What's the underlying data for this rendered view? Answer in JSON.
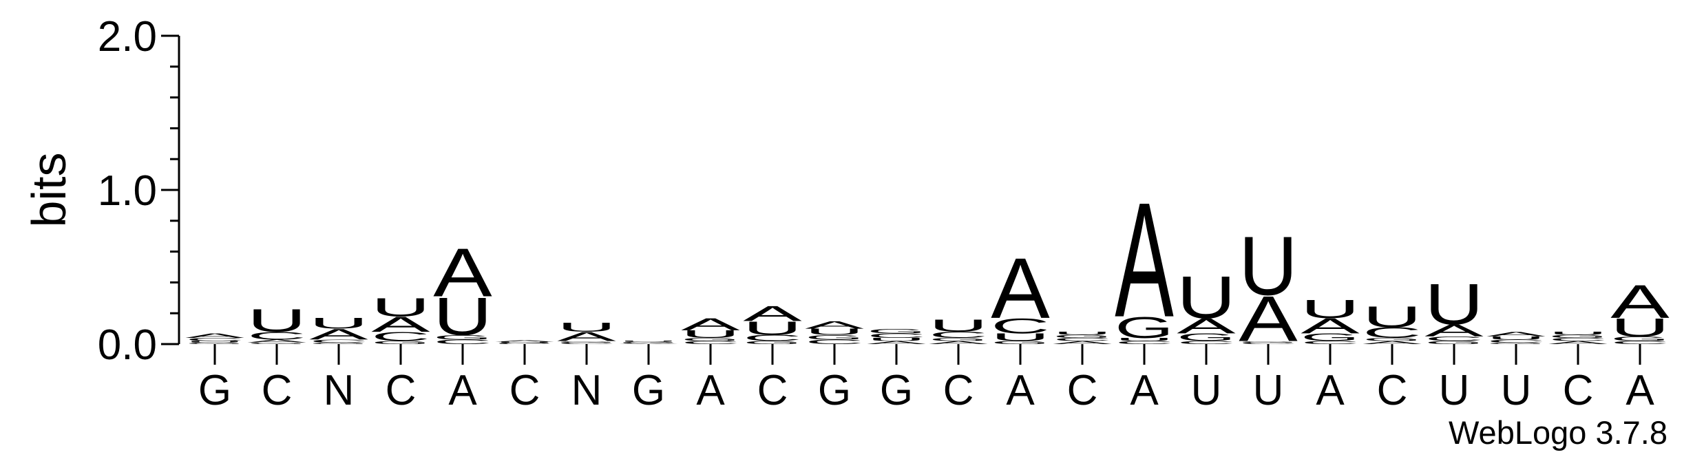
{
  "chart_data": {
    "type": "logo",
    "y_label": "bits",
    "footer": "WebLogo 3.7.8",
    "categories": [
      "G",
      "C",
      "N",
      "C",
      "A",
      "C",
      "N",
      "G",
      "A",
      "C",
      "G",
      "G",
      "C",
      "A",
      "C",
      "A",
      "U",
      "U",
      "A",
      "C",
      "U",
      "U",
      "C",
      "A"
    ],
    "ylim": [
      0,
      2
    ],
    "yticks": [
      {
        "value": 0,
        "label": "0.0"
      },
      {
        "value": 1,
        "label": "1.0"
      },
      {
        "value": 2,
        "label": "2.0"
      }
    ],
    "minor_yticks": [
      0.2,
      0.4,
      0.6,
      0.8,
      1.2,
      1.4,
      1.6,
      1.8
    ],
    "series": [
      {
        "name": "A",
        "color": "#ff8c00",
        "values": [
          0.03,
          0.02,
          0.07,
          0.1,
          0.32,
          0.01,
          0.06,
          0.005,
          0.08,
          0.1,
          0.05,
          0.02,
          0.02,
          0.4,
          0.02,
          0.76,
          0.1,
          0.3,
          0.1,
          0.02,
          0.08,
          0.03,
          0.02,
          0.22
        ]
      },
      {
        "name": "C",
        "color": "#0000ff",
        "values": [
          0.02,
          0.05,
          0.02,
          0.06,
          0.03,
          0.005,
          0.01,
          0.005,
          0.02,
          0.04,
          0.03,
          0.03,
          0.04,
          0.1,
          0.02,
          0.02,
          0.02,
          0.01,
          0.02,
          0.07,
          0.03,
          0.02,
          0.02,
          0.02
        ]
      },
      {
        "name": "G",
        "color": "#0000ff",
        "values": [
          0.01,
          0.01,
          0.01,
          0.02,
          0.03,
          0.005,
          0.01,
          0.005,
          0.02,
          0.02,
          0.03,
          0.03,
          0.02,
          0.02,
          0.02,
          0.14,
          0.05,
          0.01,
          0.05,
          0.02,
          0.02,
          0.01,
          0.02,
          0.03
        ]
      },
      {
        "name": "U",
        "color": "#ff8c00",
        "values": [
          0.01,
          0.15,
          0.07,
          0.12,
          0.25,
          0.005,
          0.06,
          0.005,
          0.05,
          0.09,
          0.04,
          0.02,
          0.08,
          0.05,
          0.02,
          0.02,
          0.28,
          0.39,
          0.12,
          0.14,
          0.27,
          0.02,
          0.02,
          0.12
        ]
      }
    ]
  }
}
